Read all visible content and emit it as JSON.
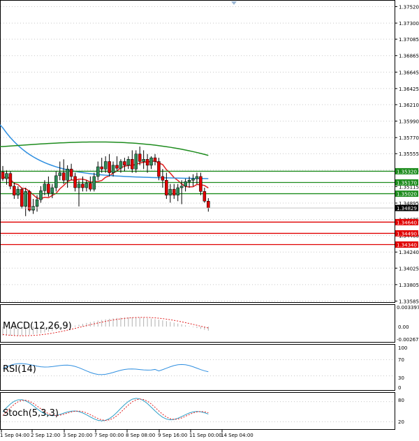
{
  "colors": {
    "bull": "#2e8b57",
    "bear": "#e00000",
    "grid": "#c8c8c8",
    "ma_blue": "#2f8fe0",
    "ma_red": "#e02020",
    "ma_green": "#1e8c1e",
    "level_green": "#1e8c1e",
    "level_red": "#e00000",
    "panel_border": "#000000"
  },
  "price_axis": {
    "ticks": [
      "1.37520",
      "1.37300",
      "1.37085",
      "1.36865",
      "1.36645",
      "1.36425",
      "1.36210",
      "1.35990",
      "1.35770",
      "1.35555",
      "1.35335",
      "1.35115",
      "1.34895",
      "1.34675",
      "1.34460",
      "1.34240",
      "1.34025",
      "1.33805",
      "1.33585"
    ],
    "min": 1.3358,
    "max": 1.3759
  },
  "levels": [
    {
      "label": "1.35320",
      "value": 1.3532,
      "color": "green"
    },
    {
      "label": "1.35170",
      "value": 1.3517,
      "color": "green"
    },
    {
      "label": "1.35020",
      "value": 1.3502,
      "color": "green"
    },
    {
      "label": "1.34640",
      "value": 1.3464,
      "color": "red"
    },
    {
      "label": "1.34490",
      "value": 1.3449,
      "color": "red"
    },
    {
      "label": "1.34340",
      "value": 1.3434,
      "color": "red"
    }
  ],
  "current_price": {
    "label": "1.34829",
    "value": 1.34829
  },
  "panels": {
    "macd": {
      "title": "MACD(12,26,9)",
      "ticks": [
        "0.003397",
        "0.00",
        "-0.002678"
      ]
    },
    "rsi": {
      "title": "RSI(14)",
      "ticks": [
        "100",
        "70",
        "30",
        "0"
      ]
    },
    "stoch": {
      "title": "Stoch(5,3,3)",
      "ticks": [
        "80",
        "20"
      ]
    }
  },
  "time_axis": {
    "labels": [
      "1 Sep 04:00",
      "2 Sep 12:00",
      "3 Sep 20:00",
      "7 Sep 00:00",
      "8 Sep 08:00",
      "9 Sep 16:00",
      "11 Sep 00:00",
      "14 Sep 04:00"
    ]
  },
  "chart_data": {
    "type": "candlestick",
    "candles": [
      [
        1.3531,
        1.3539,
        1.3519,
        1.3522
      ],
      [
        1.3522,
        1.3533,
        1.3514,
        1.3529
      ],
      [
        1.3529,
        1.3532,
        1.3508,
        1.3512
      ],
      [
        1.3512,
        1.3517,
        1.3495,
        1.35
      ],
      [
        1.35,
        1.3512,
        1.3495,
        1.3508
      ],
      [
        1.3508,
        1.351,
        1.3482,
        1.3485
      ],
      [
        1.3485,
        1.351,
        1.3472,
        1.3505
      ],
      [
        1.3505,
        1.3507,
        1.3478,
        1.348
      ],
      [
        1.348,
        1.3495,
        1.3475,
        1.3485
      ],
      [
        1.3485,
        1.35,
        1.3478,
        1.3494
      ],
      [
        1.3494,
        1.3512,
        1.349,
        1.3506
      ],
      [
        1.3506,
        1.352,
        1.35,
        1.3515
      ],
      [
        1.3515,
        1.3525,
        1.3498,
        1.3503
      ],
      [
        1.3503,
        1.3515,
        1.3496,
        1.351
      ],
      [
        1.351,
        1.3532,
        1.3505,
        1.3526
      ],
      [
        1.3526,
        1.3545,
        1.352,
        1.353
      ],
      [
        1.353,
        1.3548,
        1.3515,
        1.352
      ],
      [
        1.352,
        1.354,
        1.351,
        1.3535
      ],
      [
        1.3535,
        1.3542,
        1.352,
        1.3525
      ],
      [
        1.3525,
        1.353,
        1.3505,
        1.351
      ],
      [
        1.351,
        1.352,
        1.3485,
        1.3515
      ],
      [
        1.3515,
        1.3525,
        1.3505,
        1.351
      ],
      [
        1.351,
        1.352,
        1.3505,
        1.3516
      ],
      [
        1.3516,
        1.3525,
        1.3505,
        1.3508
      ],
      [
        1.3508,
        1.353,
        1.3505,
        1.3525
      ],
      [
        1.3525,
        1.3545,
        1.352,
        1.3538
      ],
      [
        1.3538,
        1.355,
        1.353,
        1.3535
      ],
      [
        1.3535,
        1.3552,
        1.353,
        1.3545
      ],
      [
        1.3545,
        1.3555,
        1.3525,
        1.353
      ],
      [
        1.353,
        1.3545,
        1.3525,
        1.354
      ],
      [
        1.354,
        1.3552,
        1.3532,
        1.3536
      ],
      [
        1.3536,
        1.3548,
        1.353,
        1.3545
      ],
      [
        1.3545,
        1.355,
        1.3532,
        1.354
      ],
      [
        1.354,
        1.3552,
        1.3535,
        1.3548
      ],
      [
        1.3548,
        1.356,
        1.353,
        1.3535
      ],
      [
        1.3535,
        1.356,
        1.353,
        1.3555
      ],
      [
        1.3555,
        1.3565,
        1.354,
        1.3545
      ],
      [
        1.3545,
        1.356,
        1.3535,
        1.3548
      ],
      [
        1.3548,
        1.3555,
        1.353,
        1.354
      ],
      [
        1.354,
        1.3552,
        1.3535,
        1.355
      ],
      [
        1.355,
        1.3555,
        1.354,
        1.3545
      ],
      [
        1.3545,
        1.355,
        1.352,
        1.3525
      ],
      [
        1.3525,
        1.3535,
        1.351,
        1.352
      ],
      [
        1.352,
        1.353,
        1.3495,
        1.35
      ],
      [
        1.35,
        1.3515,
        1.349,
        1.3508
      ],
      [
        1.3508,
        1.3515,
        1.3495,
        1.35
      ],
      [
        1.35,
        1.3515,
        1.3492,
        1.351
      ],
      [
        1.351,
        1.352,
        1.3488,
        1.3512
      ],
      [
        1.3512,
        1.3522,
        1.3505,
        1.3518
      ],
      [
        1.3518,
        1.3525,
        1.351,
        1.352
      ],
      [
        1.352,
        1.3528,
        1.3512,
        1.3522
      ],
      [
        1.3522,
        1.353,
        1.3515,
        1.3525
      ],
      [
        1.3525,
        1.353,
        1.35,
        1.3505
      ],
      [
        1.3505,
        1.351,
        1.349,
        1.3492
      ],
      [
        1.3492,
        1.3496,
        1.3478,
        1.3483
      ]
    ]
  }
}
